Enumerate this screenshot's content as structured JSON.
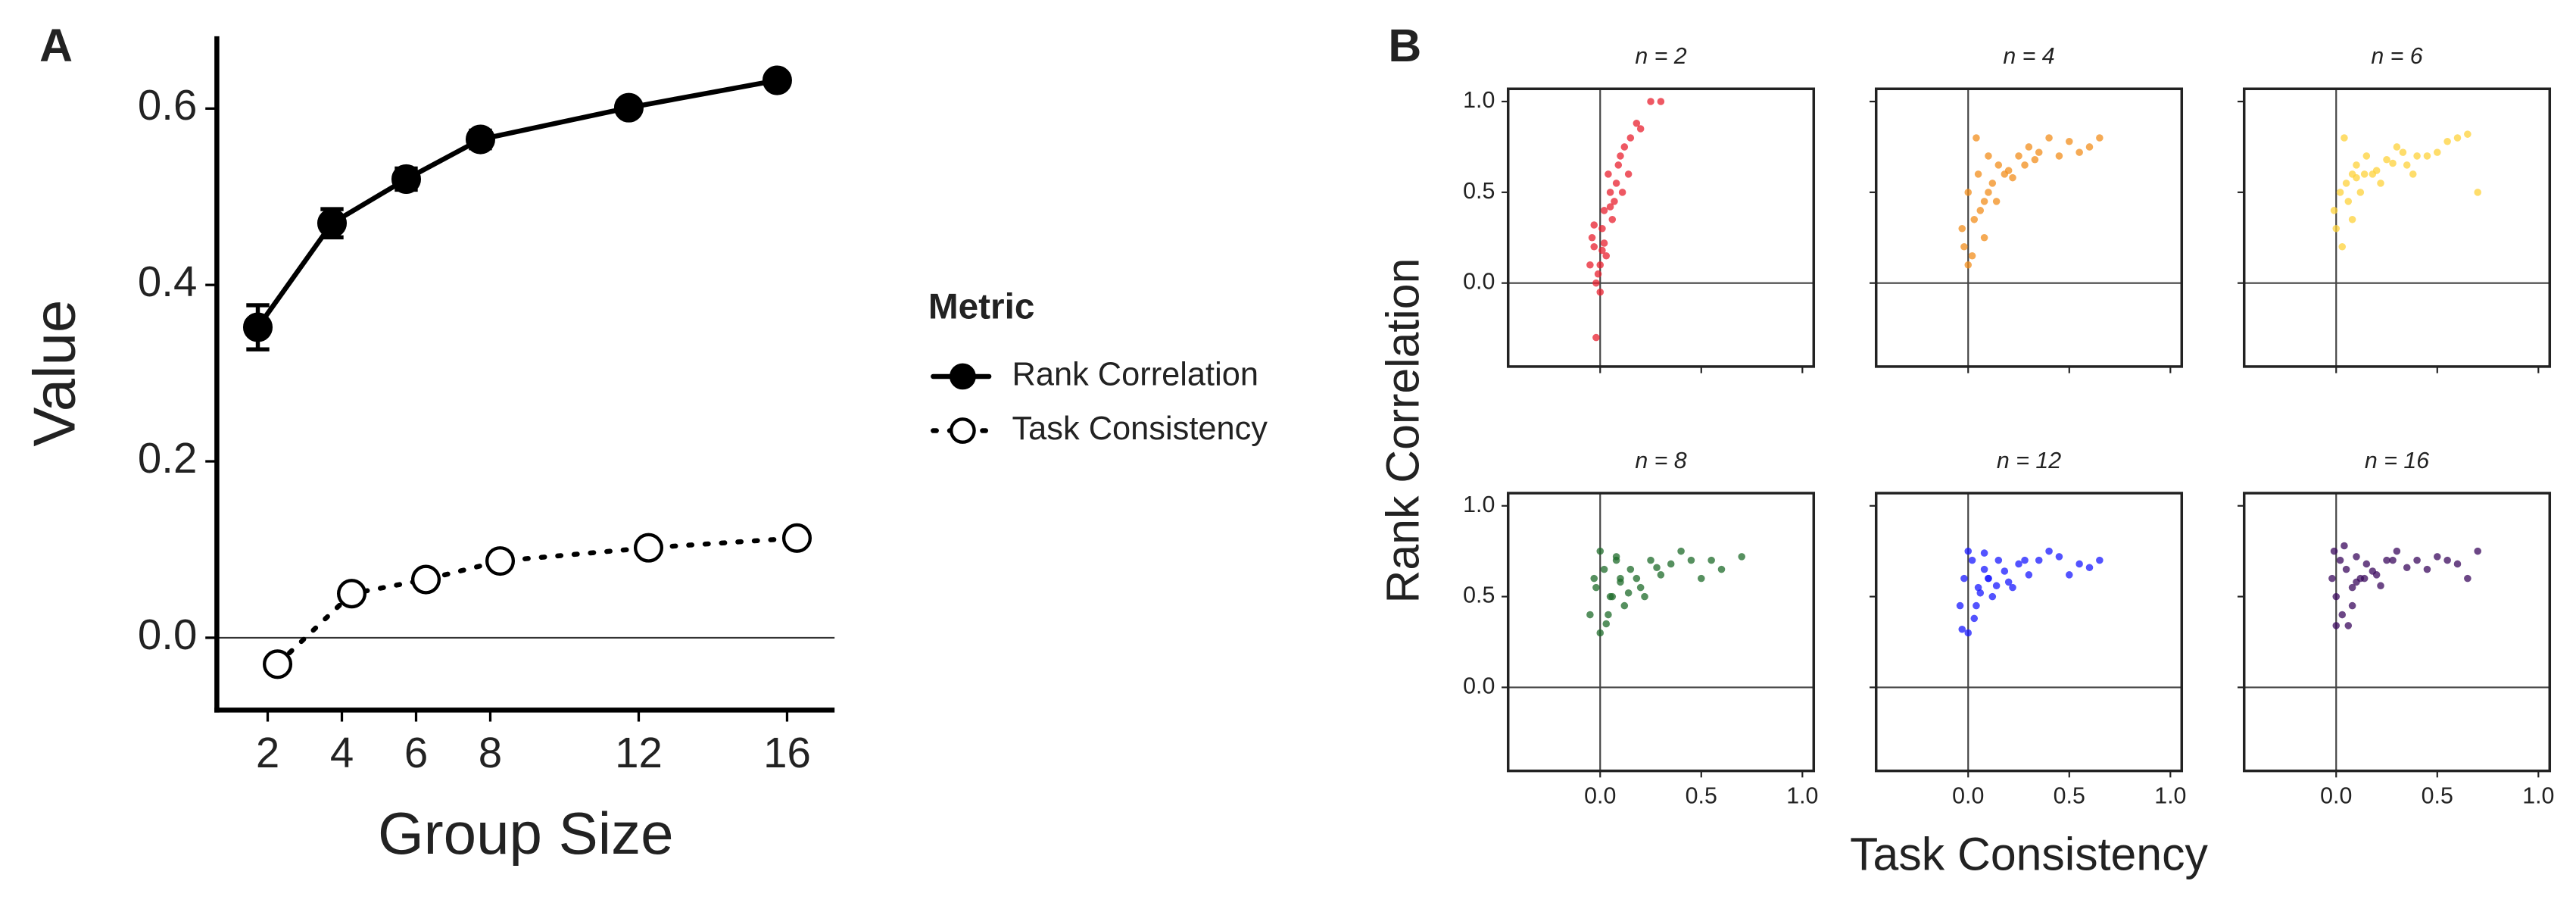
{
  "chart_data": [
    {
      "type": "line",
      "label": "A",
      "xlabel": "Group Size",
      "ylabel": "Value",
      "x": [
        2,
        4,
        6,
        8,
        12,
        16
      ],
      "xlim": [
        0.63,
        17.28
      ],
      "xticks": [
        2,
        4,
        6,
        8,
        12,
        16
      ],
      "ylim": [
        -0.082,
        0.682
      ],
      "yticks": [
        {
          "value": 0,
          "label": "0.0"
        },
        {
          "value": 0.2,
          "label": "0.2"
        },
        {
          "value": 0.4,
          "label": "0.4"
        },
        {
          "value": 0.6,
          "label": "0.6"
        }
      ],
      "hline": 0,
      "legend_title": "Metric",
      "series": [
        {
          "name": "Rank Correlation",
          "color": "#000000",
          "style": "solid",
          "marker": "filled",
          "values": [
            0.352,
            0.47,
            0.52,
            0.565,
            0.601,
            0.632
          ],
          "errors": [
            0.025,
            0.016,
            0.012,
            0.01,
            0.008,
            0.006
          ]
        },
        {
          "name": "Task Consistency",
          "color": "#000000",
          "style": "dotted",
          "marker": "open",
          "values": [
            -0.03,
            0.05,
            0.066,
            0.087,
            0.102,
            0.113
          ]
        }
      ]
    },
    {
      "type": "scatter",
      "label": "B",
      "xlabel": "Task Consistency",
      "ylabel": "Rank Correlation",
      "xlim": [
        -0.455,
        1.056
      ],
      "ylim": [
        -0.46,
        1.07
      ],
      "xticks": [
        {
          "value": 0,
          "label": "0.0"
        },
        {
          "value": 0.5,
          "label": "0.5"
        },
        {
          "value": 1,
          "label": "1.0"
        }
      ],
      "yticks": [
        {
          "value": 0,
          "label": "0.0"
        },
        {
          "value": 0.5,
          "label": "0.5"
        },
        {
          "value": 1,
          "label": "1.0"
        }
      ],
      "hline": 0,
      "vline": 0,
      "panels": [
        {
          "title": "n = 2",
          "color": "#e8202f",
          "x": [
            -0.05,
            -0.03,
            -0.02,
            0.0,
            0.01,
            -0.04,
            0.02,
            0.03,
            -0.01,
            0.05,
            0.06,
            0.04,
            0.08,
            0.1,
            0.12,
            0.07,
            0.15,
            0.18,
            0.2,
            0.25,
            0.3,
            0.0,
            -0.02,
            0.02,
            0.09,
            0.11,
            -0.03,
            0.01,
            0.14,
            0.05
          ],
          "y": [
            0.1,
            0.2,
            0.0,
            -0.05,
            0.3,
            0.25,
            0.4,
            0.15,
            0.05,
            0.5,
            0.35,
            0.6,
            0.55,
            0.7,
            0.75,
            0.45,
            0.8,
            0.88,
            0.85,
            1.0,
            1.0,
            0.1,
            -0.3,
            0.22,
            0.65,
            0.5,
            0.32,
            0.18,
            0.6,
            0.42
          ]
        },
        {
          "title": "n = 4",
          "color": "#f28e1c",
          "x": [
            -0.03,
            0.0,
            0.02,
            0.05,
            0.08,
            0.1,
            0.12,
            0.15,
            0.2,
            0.25,
            0.3,
            0.35,
            0.4,
            0.5,
            0.6,
            0.65,
            0.0,
            0.03,
            0.06,
            0.1,
            0.18,
            0.22,
            0.28,
            0.45,
            -0.02,
            0.04,
            0.08,
            0.14,
            0.33,
            0.55
          ],
          "y": [
            0.3,
            0.5,
            0.15,
            0.6,
            0.45,
            0.7,
            0.55,
            0.65,
            0.62,
            0.7,
            0.75,
            0.72,
            0.8,
            0.78,
            0.75,
            0.8,
            0.1,
            0.35,
            0.4,
            0.5,
            0.6,
            0.58,
            0.65,
            0.7,
            0.2,
            0.8,
            0.25,
            0.45,
            0.68,
            0.72
          ]
        },
        {
          "title": "n = 6",
          "color": "#fdd23a",
          "x": [
            0.0,
            0.02,
            0.05,
            0.08,
            0.1,
            0.12,
            0.15,
            0.2,
            0.25,
            0.3,
            0.35,
            0.4,
            0.5,
            0.6,
            0.7,
            0.03,
            0.06,
            0.1,
            0.18,
            0.22,
            0.28,
            0.45,
            0.55,
            0.65,
            -0.01,
            0.04,
            0.08,
            0.14,
            0.33,
            0.38
          ],
          "y": [
            0.3,
            0.5,
            0.55,
            0.6,
            0.65,
            0.5,
            0.7,
            0.62,
            0.68,
            0.75,
            0.65,
            0.7,
            0.72,
            0.8,
            0.5,
            0.2,
            0.45,
            0.58,
            0.6,
            0.55,
            0.66,
            0.7,
            0.78,
            0.82,
            0.4,
            0.8,
            0.35,
            0.6,
            0.72,
            0.6
          ]
        },
        {
          "title": "n = 8",
          "color": "#1e6b2a",
          "x": [
            -0.05,
            -0.02,
            0.0,
            0.02,
            0.05,
            0.08,
            0.1,
            0.12,
            0.15,
            0.2,
            0.25,
            0.3,
            0.35,
            0.4,
            0.5,
            0.6,
            0.7,
            0.0,
            0.03,
            0.06,
            0.1,
            0.18,
            0.22,
            0.28,
            0.45,
            -0.03,
            0.04,
            0.08,
            0.14,
            0.55
          ],
          "y": [
            0.4,
            0.55,
            0.3,
            0.65,
            0.5,
            0.7,
            0.6,
            0.45,
            0.65,
            0.55,
            0.7,
            0.62,
            0.68,
            0.75,
            0.6,
            0.65,
            0.72,
            0.75,
            0.35,
            0.5,
            0.58,
            0.6,
            0.5,
            0.66,
            0.7,
            0.6,
            0.4,
            0.72,
            0.52,
            0.7
          ]
        },
        {
          "title": "n = 12",
          "color": "#1a1aff",
          "x": [
            -0.04,
            -0.02,
            0.0,
            0.02,
            0.05,
            0.08,
            0.1,
            0.12,
            0.15,
            0.2,
            0.25,
            0.3,
            0.35,
            0.4,
            0.5,
            0.6,
            0.65,
            0.0,
            0.03,
            0.06,
            0.1,
            0.18,
            0.22,
            0.28,
            0.45,
            -0.03,
            0.04,
            0.08,
            0.14,
            0.55
          ],
          "y": [
            0.45,
            0.6,
            0.3,
            0.7,
            0.55,
            0.65,
            0.6,
            0.5,
            0.7,
            0.58,
            0.68,
            0.62,
            0.7,
            0.75,
            0.62,
            0.66,
            0.7,
            0.75,
            0.38,
            0.52,
            0.6,
            0.64,
            0.55,
            0.7,
            0.72,
            0.32,
            0.45,
            0.74,
            0.56,
            0.68
          ]
        },
        {
          "title": "n = 16",
          "color": "#3b0a5e",
          "x": [
            -0.02,
            0.0,
            0.02,
            0.05,
            0.08,
            0.1,
            0.12,
            0.15,
            0.2,
            0.25,
            0.3,
            0.35,
            0.4,
            0.5,
            0.6,
            0.7,
            0.0,
            0.03,
            0.06,
            0.1,
            0.18,
            0.22,
            0.28,
            0.45,
            -0.01,
            0.04,
            0.08,
            0.14,
            0.55,
            0.65
          ],
          "y": [
            0.6,
            0.5,
            0.7,
            0.65,
            0.55,
            0.72,
            0.6,
            0.68,
            0.62,
            0.7,
            0.75,
            0.66,
            0.7,
            0.72,
            0.68,
            0.75,
            0.34,
            0.4,
            0.34,
            0.58,
            0.64,
            0.56,
            0.7,
            0.65,
            0.75,
            0.78,
            0.45,
            0.6,
            0.7,
            0.6
          ]
        }
      ]
    }
  ]
}
